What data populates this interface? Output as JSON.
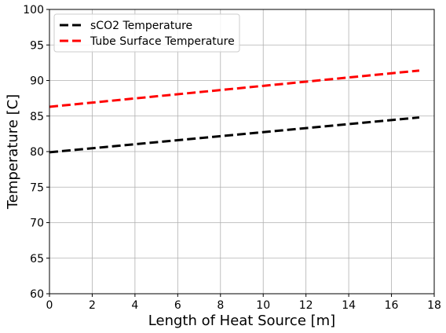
{
  "chart_data": {
    "type": "line",
    "title": "",
    "xlabel": "Length of Heat Source [m]",
    "ylabel": "Temperature [C]",
    "xlim": [
      0,
      18
    ],
    "ylim": [
      60,
      100
    ],
    "xticks": [
      0,
      2,
      4,
      6,
      8,
      10,
      12,
      14,
      16,
      18
    ],
    "yticks": [
      60,
      65,
      70,
      75,
      80,
      85,
      90,
      95,
      100
    ],
    "grid": true,
    "legend_position": "top-left",
    "series": [
      {
        "name": "sCO2 Temperature",
        "color": "#000000",
        "style": "dashed",
        "x": [
          0,
          17.3
        ],
        "y": [
          79.9,
          84.8
        ]
      },
      {
        "name": "Tube Surface Temperature",
        "color": "#ff0000",
        "style": "dashed",
        "x": [
          0,
          17.3
        ],
        "y": [
          86.3,
          91.4
        ]
      }
    ]
  }
}
